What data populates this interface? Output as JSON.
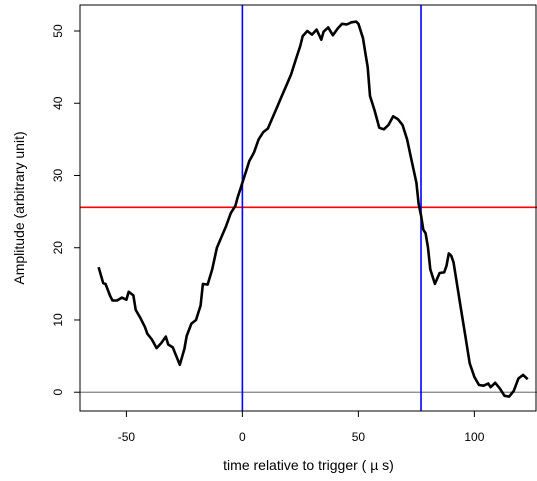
{
  "chart_data": {
    "type": "line",
    "title": "",
    "xlabel": "time relative to trigger ( µ s)",
    "ylabel": "Amplitude (arbitrary unit)",
    "xlim": [
      -70,
      127
    ],
    "ylim": [
      -2.6,
      53.6
    ],
    "xticks": [
      -50,
      0,
      50,
      100
    ],
    "yticks": [
      0,
      10,
      20,
      30,
      40,
      50
    ],
    "grid": false,
    "legend": "none",
    "colors": {
      "series": "#000000",
      "threshold": "#ff0000",
      "markers": "#0000ff",
      "baseline": "#808080"
    },
    "reference_lines": {
      "horizontal_threshold": 25.6,
      "horizontal_baseline": 0,
      "vertical_markers": [
        0,
        77
      ]
    },
    "series": [
      {
        "x": [
          -62,
          -60,
          -59,
          -57,
          -56,
          -54,
          -52,
          -50,
          -49,
          -47,
          -46,
          -44,
          -42,
          -41,
          -39,
          -37,
          -35,
          -33,
          -32,
          -30,
          -29,
          -27,
          -25,
          -24,
          -22,
          -20,
          -18,
          -17,
          -15,
          -13,
          -11,
          -9,
          -7,
          -5,
          -3,
          -2,
          -1,
          0,
          1,
          2,
          3,
          4,
          5,
          7,
          9,
          11,
          13,
          15,
          17,
          19,
          21,
          23,
          25,
          26,
          28,
          30,
          32,
          34,
          35,
          37,
          39,
          41,
          43,
          45,
          47,
          49,
          50,
          52,
          53,
          54,
          55,
          57,
          59,
          61,
          63,
          65,
          67,
          69,
          71,
          73,
          75,
          76,
          77,
          78,
          79,
          80,
          81,
          82,
          83,
          85,
          87,
          88,
          89,
          90,
          91,
          92,
          94,
          96,
          98,
          100,
          102,
          104,
          106,
          107,
          109,
          111,
          113,
          115,
          117,
          119,
          121,
          123
        ],
        "y": [
          17.3,
          15.1,
          15.0,
          13.3,
          12.7,
          12.7,
          13.1,
          12.8,
          13.9,
          13.4,
          11.4,
          10.3,
          9.0,
          8.1,
          7.3,
          6.1,
          6.8,
          7.7,
          6.6,
          6.2,
          5.4,
          3.8,
          6.0,
          7.8,
          9.5,
          10.0,
          12.0,
          15.0,
          14.9,
          17.0,
          20.0,
          21.5,
          23.0,
          24.8,
          25.8,
          27.0,
          28.0,
          29.0,
          30.0,
          31.0,
          32.0,
          32.6,
          33.2,
          35.0,
          36.0,
          36.5,
          38.0,
          39.5,
          41.0,
          42.5,
          44.0,
          46.0,
          48.0,
          49.3,
          50.0,
          49.5,
          50.2,
          48.8,
          49.9,
          50.5,
          49.4,
          50.3,
          51.0,
          50.9,
          51.2,
          51.3,
          51.0,
          49.0,
          47.0,
          45.0,
          41.0,
          39.0,
          36.6,
          36.4,
          37.0,
          38.2,
          37.8,
          37.0,
          35.0,
          32.0,
          29.0,
          26.0,
          24.5,
          22.5,
          22.0,
          20.0,
          17.0,
          16.0,
          15.0,
          16.5,
          16.6,
          17.5,
          19.2,
          18.9,
          18.0,
          16.0,
          12.0,
          8.0,
          4.0,
          2.1,
          1.0,
          0.9,
          1.2,
          0.7,
          1.3,
          0.5,
          -0.5,
          -0.6,
          0.2,
          1.9,
          2.4,
          1.8
        ]
      }
    ]
  }
}
